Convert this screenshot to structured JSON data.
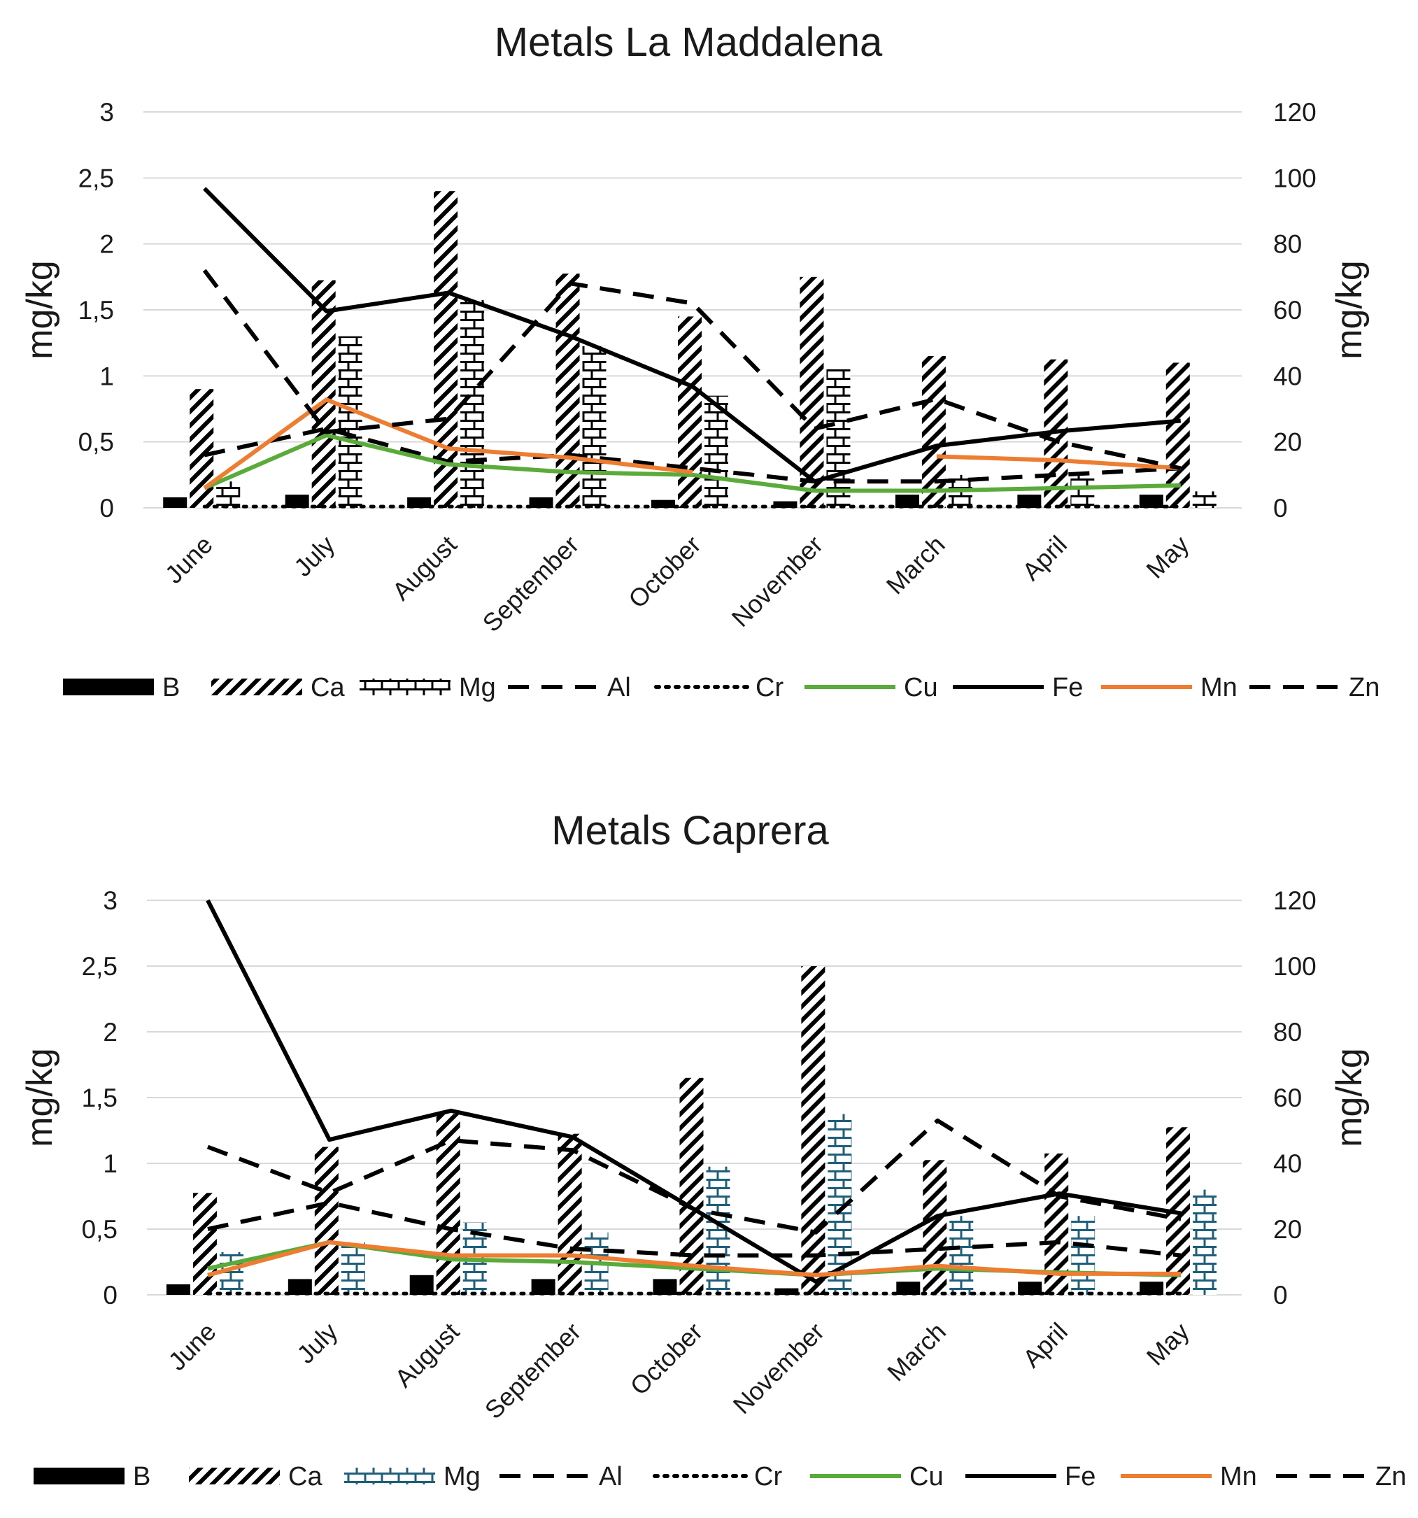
{
  "chart_data": [
    {
      "type": "bar+line",
      "title": "Metals La Maddalena",
      "ylabel_left": "mg/kg",
      "ylabel_right": "mg/kg",
      "ylim_left": [
        0,
        3
      ],
      "ylim_right": [
        0,
        120
      ],
      "yticks_left": [
        "0",
        "0,5",
        "1",
        "1,5",
        "2",
        "2,5",
        "3"
      ],
      "yticks_right": [
        "0",
        "20",
        "40",
        "60",
        "80",
        "100",
        "120"
      ],
      "categories": [
        "June",
        "July",
        "August",
        "September",
        "October",
        "November",
        "March",
        "April",
        "May"
      ],
      "legend": [
        "B",
        "Ca",
        "Mg",
        "Al",
        "Cr",
        "Cu",
        "Fe",
        "Mn",
        "Zn"
      ],
      "legend_position": "bottom",
      "series": [
        {
          "name": "B",
          "kind": "bar",
          "axis": "left",
          "pattern": "solid",
          "values": [
            0.08,
            0.1,
            0.08,
            0.08,
            0.06,
            0.05,
            0.1,
            0.1,
            0.1
          ]
        },
        {
          "name": "Ca",
          "kind": "bar",
          "axis": "right",
          "pattern": "diagonal",
          "values": [
            36,
            69,
            96,
            71,
            58,
            70,
            46,
            45,
            44
          ]
        },
        {
          "name": "Mg",
          "kind": "bar",
          "axis": "right",
          "pattern": "brick",
          "values": [
            8,
            52,
            63,
            49,
            34,
            42,
            10,
            10,
            5
          ]
        },
        {
          "name": "Al",
          "kind": "line",
          "axis": "left",
          "dash": "long",
          "values": [
            0.4,
            0.6,
            0.35,
            0.4,
            0.3,
            0.2,
            0.2,
            0.25,
            0.3
          ]
        },
        {
          "name": "Cr",
          "kind": "line",
          "axis": "left",
          "dash": "dotted",
          "values": [
            0.01,
            0.01,
            0.01,
            0.01,
            0.01,
            0.01,
            0.01,
            0.01,
            0.01
          ]
        },
        {
          "name": "Cu",
          "kind": "line",
          "axis": "left",
          "color": "#5aab3a",
          "values": [
            0.15,
            0.55,
            0.33,
            0.27,
            0.25,
            0.13,
            0.13,
            0.15,
            0.17
          ]
        },
        {
          "name": "Fe",
          "kind": "line",
          "axis": "left",
          "values": [
            2.42,
            1.49,
            1.63,
            1.3,
            0.92,
            0.2,
            0.47,
            0.58,
            0.66
          ]
        },
        {
          "name": "Mn",
          "kind": "line",
          "axis": "left",
          "color": "#ed7d31",
          "values": [
            0.15,
            0.82,
            0.45,
            0.38,
            0.27,
            null,
            0.39,
            0.36,
            0.3
          ]
        },
        {
          "name": "Zn",
          "kind": "line",
          "axis": "right",
          "dash": "long",
          "values": [
            72,
            23,
            27,
            68,
            62,
            24,
            33,
            20,
            12
          ]
        }
      ]
    },
    {
      "type": "bar+line",
      "title": "Metals Caprera",
      "ylabel_left": "mg/kg",
      "ylabel_right": "mg/kg",
      "ylim_left": [
        0,
        3
      ],
      "ylim_right": [
        0,
        120
      ],
      "yticks_left": [
        "0",
        "0,5",
        "1",
        "1,5",
        "2",
        "2,5",
        "3"
      ],
      "yticks_right": [
        "0",
        "20",
        "40",
        "60",
        "80",
        "100",
        "120"
      ],
      "categories": [
        "June",
        "July",
        "August",
        "September",
        "October",
        "November",
        "March",
        "April",
        "May"
      ],
      "legend": [
        "B",
        "Ca",
        "Mg",
        "Al",
        "Cr",
        "Cu",
        "Fe",
        "Mn",
        "Zn"
      ],
      "legend_position": "bottom",
      "series": [
        {
          "name": "B",
          "kind": "bar",
          "axis": "left",
          "pattern": "solid",
          "values": [
            0.08,
            0.12,
            0.15,
            0.12,
            0.12,
            0.05,
            0.1,
            0.1,
            0.1
          ]
        },
        {
          "name": "Ca",
          "kind": "bar",
          "axis": "right",
          "pattern": "diagonal",
          "values": [
            31,
            45,
            55,
            49,
            66,
            100,
            41,
            43,
            51
          ]
        },
        {
          "name": "Mg",
          "kind": "bar",
          "axis": "right",
          "pattern": "brick",
          "color": "#1f5f7a",
          "values": [
            13,
            16,
            22,
            19,
            39,
            55,
            24,
            24,
            32
          ]
        },
        {
          "name": "Al",
          "kind": "line",
          "axis": "left",
          "dash": "long",
          "values": [
            0.5,
            0.7,
            0.5,
            0.35,
            0.3,
            0.3,
            0.35,
            0.4,
            0.3
          ]
        },
        {
          "name": "Cr",
          "kind": "line",
          "axis": "left",
          "dash": "dotted",
          "values": [
            0.01,
            0.01,
            0.01,
            0.01,
            0.01,
            0.01,
            0.01,
            0.01,
            0.01
          ]
        },
        {
          "name": "Cu",
          "kind": "line",
          "axis": "left",
          "color": "#5aab3a",
          "values": [
            0.2,
            0.4,
            0.27,
            0.25,
            0.2,
            0.15,
            0.2,
            0.17,
            0.15
          ]
        },
        {
          "name": "Fe",
          "kind": "line",
          "axis": "left",
          "values": [
            3.0,
            1.18,
            1.4,
            1.2,
            0.65,
            0.1,
            0.6,
            0.77,
            0.62
          ]
        },
        {
          "name": "Mn",
          "kind": "line",
          "axis": "left",
          "color": "#ed7d31",
          "values": [
            0.15,
            0.4,
            0.3,
            0.3,
            0.22,
            0.15,
            0.22,
            0.16,
            0.16
          ]
        },
        {
          "name": "Zn",
          "kind": "line",
          "axis": "right",
          "dash": "long",
          "values": [
            45,
            31,
            47,
            44,
            26,
            19,
            53,
            30,
            23
          ]
        }
      ]
    }
  ]
}
